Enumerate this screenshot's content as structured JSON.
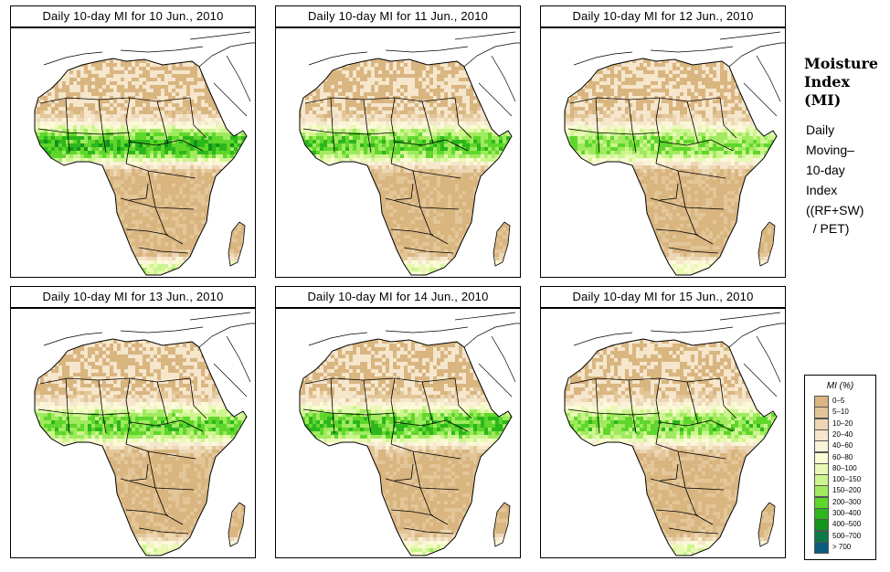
{
  "panels": [
    {
      "title": "Daily 10-day MI for  10 Jun., 2010",
      "wet": 1.0
    },
    {
      "title": "Daily 10-day MI for  11 Jun., 2010",
      "wet": 0.92
    },
    {
      "title": "Daily 10-day MI for  12 Jun., 2010",
      "wet": 0.85
    },
    {
      "title": "Daily 10-day MI for  13 Jun., 2010",
      "wet": 0.9
    },
    {
      "title": "Daily 10-day MI for  14 Jun., 2010",
      "wet": 0.95
    },
    {
      "title": "Daily 10-day MI for  15 Jun., 2010",
      "wet": 0.88
    }
  ],
  "side": {
    "title_lines": [
      "Moisture",
      "Index",
      "(MI)"
    ],
    "subtitle_lines": [
      "Daily",
      "Moving–",
      "10-day",
      "Index"
    ],
    "formula_lines": [
      "((RF+SW)",
      "  / PET)"
    ]
  },
  "legend": {
    "title": "MI (%)",
    "items": [
      {
        "label": "0–5",
        "color": "#d9b580"
      },
      {
        "label": "5–10",
        "color": "#e3c698"
      },
      {
        "label": "10–20",
        "color": "#ecd6b4"
      },
      {
        "label": "20–40",
        "color": "#f5e6cc"
      },
      {
        "label": "40–60",
        "color": "#fbf3d9"
      },
      {
        "label": "60–80",
        "color": "#fbfbd6"
      },
      {
        "label": "80–100",
        "color": "#e9f9b5"
      },
      {
        "label": "100–150",
        "color": "#cdf58f"
      },
      {
        "label": "150–200",
        "color": "#9fea5e"
      },
      {
        "label": "200–300",
        "color": "#5fd62b"
      },
      {
        "label": "300–400",
        "color": "#2cb71c"
      },
      {
        "label": "400–500",
        "color": "#12951a"
      },
      {
        "label": "500–700",
        "color": "#0c7a45"
      },
      {
        "label": "> 700",
        "color": "#0b5c7f"
      }
    ]
  }
}
